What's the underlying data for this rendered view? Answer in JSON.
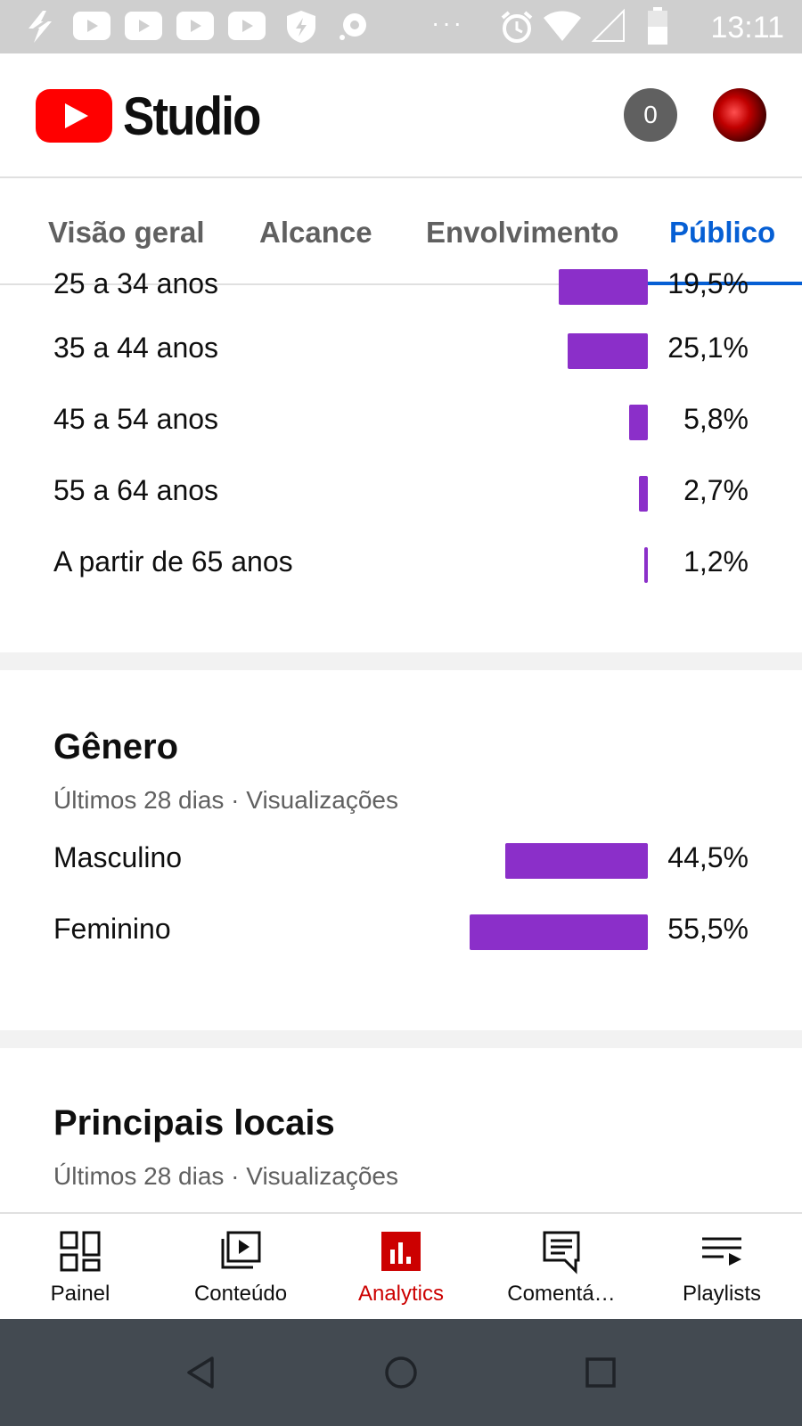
{
  "status_bar": {
    "time": "13:11",
    "dots": "···"
  },
  "header": {
    "brand": "Studio",
    "notification_count": "0"
  },
  "tabs": [
    {
      "label": "Visão geral",
      "active": false
    },
    {
      "label": "Alcance",
      "active": false
    },
    {
      "label": "Envolvimento",
      "active": false
    },
    {
      "label": "Público",
      "active": true
    }
  ],
  "age": {
    "partial_row": {
      "label": "25 a 34 anos",
      "value": "19,5%"
    },
    "rows": [
      {
        "label": "35 a 44 anos",
        "value": "25,1%",
        "share": 25.1
      },
      {
        "label": "45 a 54 anos",
        "value": "5,8%",
        "share": 5.8
      },
      {
        "label": "55 a 64 anos",
        "value": "2,7%",
        "share": 2.7
      },
      {
        "label": "A partir de 65 anos",
        "value": "1,2%",
        "share": 1.2
      }
    ]
  },
  "gender": {
    "title": "Gênero",
    "subtitle": "Últimos 28 dias · Visualizações",
    "rows": [
      {
        "label": "Masculino",
        "value": "44,5%",
        "share": 44.5
      },
      {
        "label": "Feminino",
        "value": "55,5%",
        "share": 55.5
      }
    ]
  },
  "locations": {
    "title": "Principais locais",
    "subtitle": "Últimos 28 dias · Visualizações"
  },
  "bottom_nav": [
    {
      "label": "Painel",
      "icon": "dashboard-icon",
      "active": false
    },
    {
      "label": "Conteúdo",
      "icon": "content-icon",
      "active": false
    },
    {
      "label": "Analytics",
      "icon": "analytics-icon",
      "active": true
    },
    {
      "label": "Comentá…",
      "icon": "comments-icon",
      "active": false
    },
    {
      "label": "Playlists",
      "icon": "playlists-icon",
      "active": false
    }
  ],
  "colors": {
    "bar": "#8b2fc9",
    "active_tab": "#065fd4",
    "active_nav": "#cc0000",
    "brand_red": "#ff0000"
  }
}
